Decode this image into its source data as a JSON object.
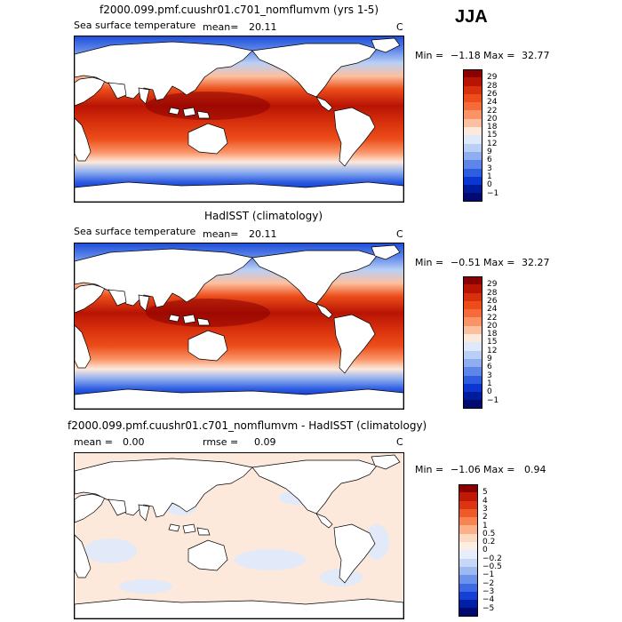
{
  "season": "JJA",
  "panels": [
    {
      "title": "f2000.099.pmf.cuushr01.c701_nomflumvm (yrs 1-5)",
      "variable": "Sea surface temperature",
      "mean_label": "mean=",
      "mean_value": "20.11",
      "units": "C",
      "min_label": "Min =",
      "min_value": "−1.18",
      "max_label": "Max =",
      "max_value": "32.77",
      "colorbar": {
        "levels": [
          "29",
          "28",
          "26",
          "24",
          "22",
          "20",
          "18",
          "15",
          "12",
          "9",
          "6",
          "3",
          "1",
          "0",
          "−1"
        ],
        "colors": [
          "#8b0000",
          "#b81404",
          "#d8300c",
          "#ec4d1a",
          "#f56c3a",
          "#fa9366",
          "#fcc0a0",
          "#fde9dc",
          "#dfe9fb",
          "#b9cff5",
          "#8eaef0",
          "#5e86ea",
          "#2f5de2",
          "#0c36d2",
          "#001b9c",
          "#000a70"
        ]
      },
      "map_style": "sst"
    },
    {
      "title": "HadISST (climatology)",
      "variable": "Sea surface temperature",
      "mean_label": "mean=",
      "mean_value": "20.11",
      "units": "C",
      "min_label": "Min =",
      "min_value": "−0.51",
      "max_label": "Max =",
      "max_value": "32.27",
      "colorbar": {
        "levels": [
          "29",
          "28",
          "26",
          "24",
          "22",
          "20",
          "18",
          "15",
          "12",
          "9",
          "6",
          "3",
          "1",
          "0",
          "−1"
        ],
        "colors": [
          "#8b0000",
          "#b81404",
          "#d8300c",
          "#ec4d1a",
          "#f56c3a",
          "#fa9366",
          "#fcc0a0",
          "#fde9dc",
          "#dfe9fb",
          "#b9cff5",
          "#8eaef0",
          "#5e86ea",
          "#2f5de2",
          "#0c36d2",
          "#001b9c",
          "#000a70"
        ]
      },
      "map_style": "sst"
    },
    {
      "title": "f2000.099.pmf.cuushr01.c701_nomflumvm - HadISST (climatology)",
      "variable": "",
      "mean_label": "mean =",
      "mean_value": "0.00",
      "rmse_label": "rmse =",
      "rmse_value": "0.09",
      "units": "C",
      "min_label": "Min =",
      "min_value": "−1.06",
      "max_label": "Max =",
      "max_value": "0.94",
      "colorbar": {
        "levels": [
          "5",
          "4",
          "3",
          "2",
          "1",
          "0.5",
          "0.2",
          "0",
          "−0.2",
          "−0.5",
          "−1",
          "−2",
          "−3",
          "−4",
          "−5"
        ],
        "colors": [
          "#8b0000",
          "#c01a06",
          "#dc3410",
          "#ee5a28",
          "#f88450",
          "#fbb088",
          "#fdd9c2",
          "#fdeee4",
          "#e6eefb",
          "#c6d8f6",
          "#9cbaf1",
          "#6d92eb",
          "#3d6ae3",
          "#1440d6",
          "#0020a8",
          "#000a70"
        ]
      },
      "map_style": "diff"
    }
  ]
}
